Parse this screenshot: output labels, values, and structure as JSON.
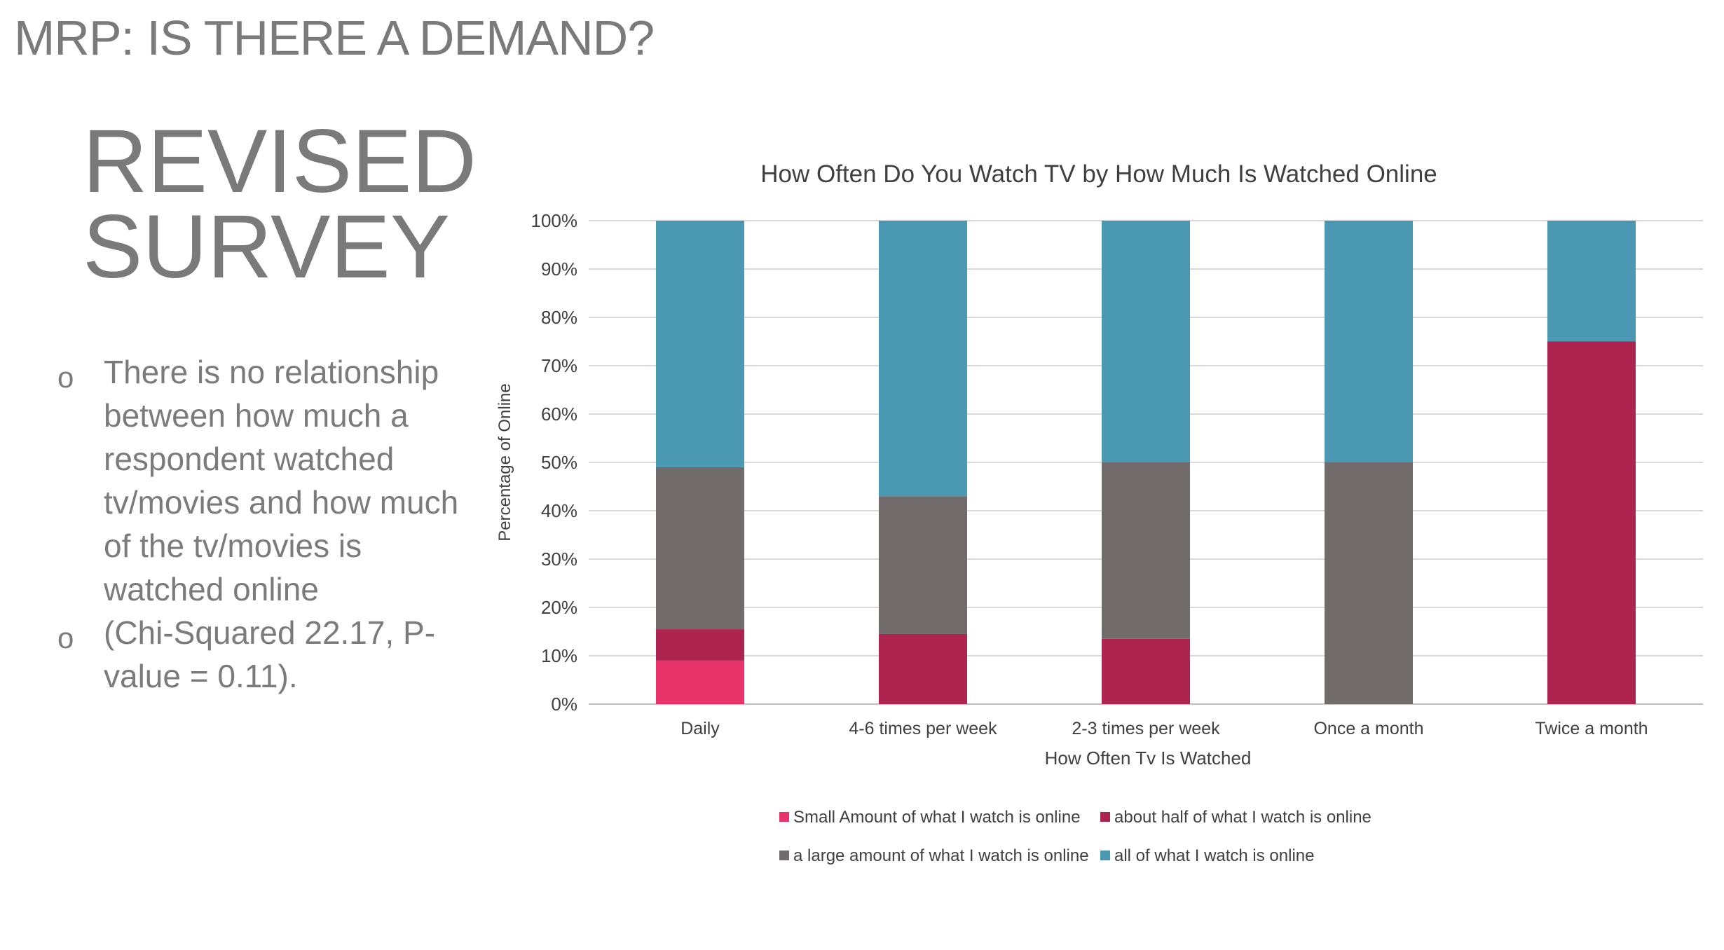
{
  "slide": {
    "header": "MRP: IS THERE A DEMAND?",
    "title_lines": [
      "REVISED",
      "SURVEY"
    ],
    "bullets": [
      "There is no relationship between how much a respondent watched tv/movies and how much of the tv/movies is watched online",
      "(Chi-Squared 22.17, P-value = 0.11)."
    ],
    "bullet_marker": "o"
  },
  "chart_data": {
    "type": "bar",
    "stacked": "percent",
    "title": "How Often Do You Watch TV by How Much Is Watched Online",
    "xlabel": "How Often Tv Is Watched",
    "ylabel": "Percentage of Online",
    "categories": [
      "Daily",
      "4-6 times per week",
      "2-3 times per week",
      "Once a month",
      "Twice a month"
    ],
    "ylim": [
      0,
      100
    ],
    "yticks": [
      "0%",
      "10%",
      "20%",
      "30%",
      "40%",
      "50%",
      "60%",
      "70%",
      "80%",
      "90%",
      "100%"
    ],
    "grid": true,
    "legend_position": "bottom",
    "series": [
      {
        "name": "Small Amount of what I watch is online",
        "color": "#e8336b",
        "values": [
          9,
          0,
          0,
          0,
          0
        ]
      },
      {
        "name": "about half of what I watch is online",
        "color": "#ad2450",
        "values": [
          6.5,
          14.5,
          13.5,
          0,
          75
        ]
      },
      {
        "name": "a large amount of what I watch is online",
        "color": "#716b6b",
        "values": [
          33.5,
          28.5,
          36.5,
          50,
          0
        ]
      },
      {
        "name": "all of what I watch is online",
        "color": "#4a98b1",
        "values": [
          51,
          57,
          50,
          50,
          25
        ]
      }
    ],
    "colors": {
      "text": "#404040",
      "grid": "#d9d9d9",
      "axis": "#bfbfbf"
    }
  }
}
